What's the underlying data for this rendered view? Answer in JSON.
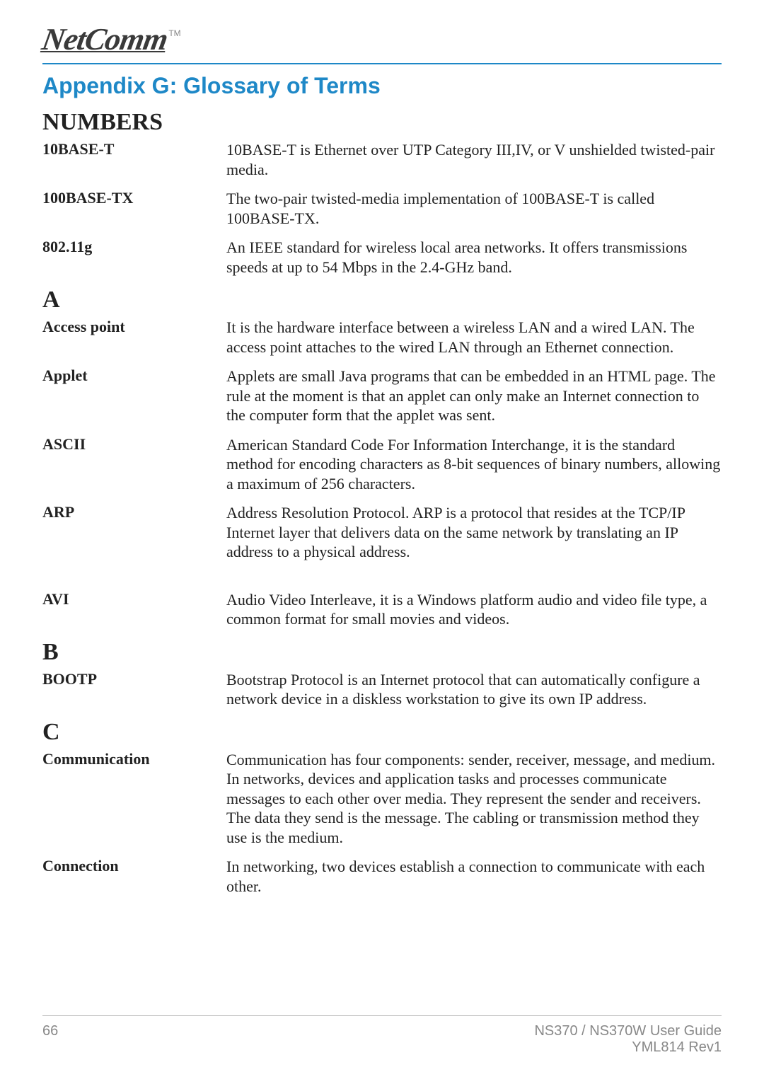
{
  "logo": {
    "text": "NetComm",
    "tm": "TM"
  },
  "title": "Appendix G: Glossary of Terms",
  "sections": [
    {
      "letter": "NUMBERS",
      "entries": [
        {
          "term": "10BASE-T",
          "def": "10BASE-T is Ethernet over UTP Category III,IV, or V unshielded twisted-pair media."
        },
        {
          "term": "100BASE-TX",
          "def": "The two-pair twisted-media implementation of 100BASE-T is called 100BASE-TX."
        },
        {
          "term": "802.11g",
          "def": "An IEEE standard for wireless local area networks. It offers transmissions speeds at up to 54 Mbps in the 2.4-GHz band."
        }
      ]
    },
    {
      "letter": "A",
      "entries": [
        {
          "term": "Access point",
          "def": "It is the hardware interface between a wireless LAN and a wired LAN. The access point attaches to the wired LAN through an Ethernet connection."
        },
        {
          "term": "Applet",
          "def": "Applets are small Java programs that can be embedded in an HTML page. The rule at the moment is that an applet can only make an Internet connection to the computer form that the applet was sent."
        },
        {
          "term": "ASCII",
          "def": "American Standard Code For Information Interchange, it is the standard method for encoding characters as 8-bit sequences of binary numbers, allowing a maximum of 256 characters."
        },
        {
          "term": "ARP",
          "def": "Address Resolution Protocol. ARP is a protocol that resides at the TCP/IP Internet layer that delivers data on the same network by translating an IP address to a physical address."
        },
        {
          "term": "AVI",
          "def": "Audio Video Interleave, it is a Windows platform audio and video file type, a common format for small movies and videos.",
          "gap": true
        }
      ]
    },
    {
      "letter": "B",
      "entries": [
        {
          "term": "BOOTP",
          "def": "Bootstrap Protocol is an Internet protocol that can automatically configure a network device in a diskless workstation to give its own IP address."
        }
      ]
    },
    {
      "letter": "C",
      "entries": [
        {
          "term": "Communication",
          "def": "Communication has four components: sender, receiver, message, and medium. In networks, devices and application tasks and processes communicate messages to each other over media. They represent the sender and receivers. The data they send is the message. The cabling or transmission method they use is the medium."
        },
        {
          "term": "Connection",
          "def": "In networking, two devices establish a connection to communicate with each other."
        }
      ]
    }
  ],
  "footer": {
    "page": "66",
    "guide": "NS370 / NS370W User Guide",
    "rev": "YML814 Rev1"
  },
  "colors": {
    "accent": "#1e88c7",
    "text": "#222222",
    "muted": "#888888"
  }
}
